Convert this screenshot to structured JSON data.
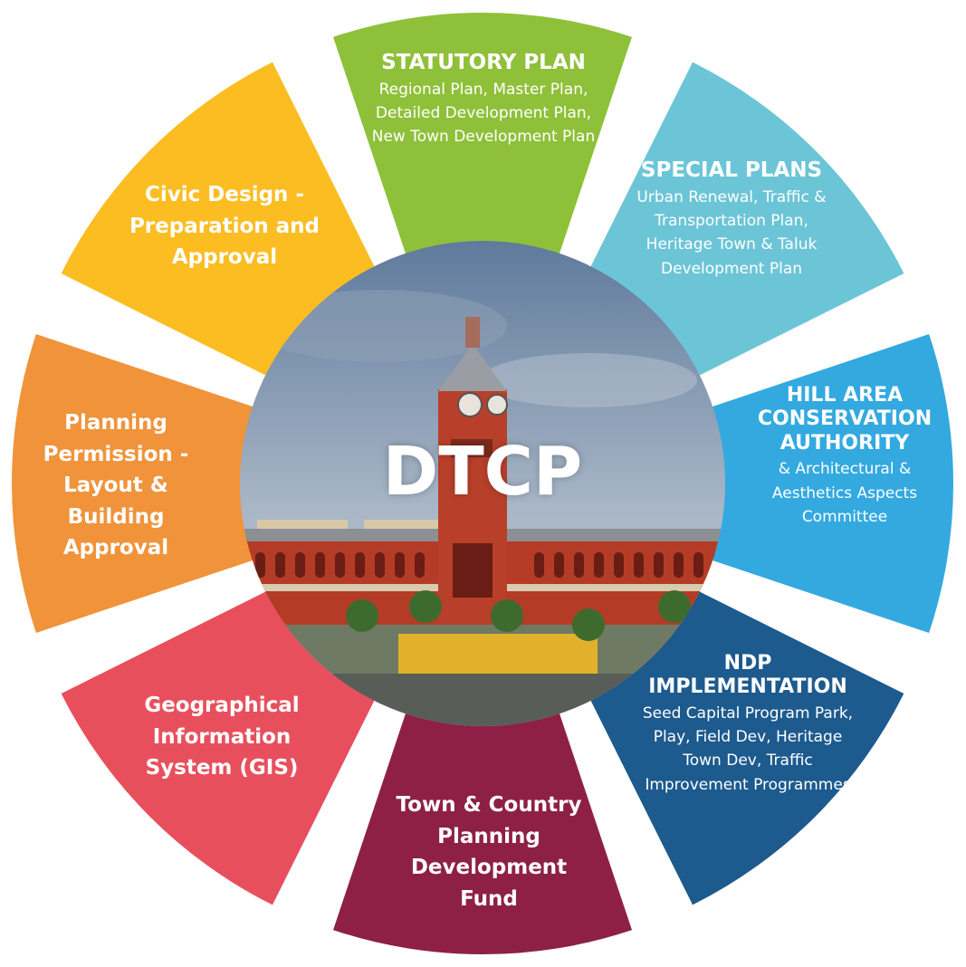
{
  "center": {
    "title": "DTCP"
  },
  "colors": {
    "statutory": "#8fc03a",
    "special": "#6cc5d6",
    "hill": "#33a9e0",
    "ndp": "#1d5a8e",
    "fund": "#8e2046",
    "gis": "#e84f5d",
    "planning": "#f0933a",
    "civic": "#fbbd22",
    "sky": "#7f94ad",
    "building": "#b43c26"
  },
  "segments": {
    "statutory": {
      "title": "STATUTORY PLAN",
      "desc": "Regional Plan, Master Plan, Detailed Development Plan, New Town Development Plan"
    },
    "special": {
      "title": "SPECIAL PLANS",
      "desc": "Urban Renewal, Traffic & Transportation Plan, Heritage  Town & Taluk Development Plan"
    },
    "hill": {
      "title": "HILL AREA CONSERVATION AUTHORITY",
      "desc": "& Architectural & Aesthetics Aspects Committee"
    },
    "ndp": {
      "title": "NDP IMPLEMENTATION",
      "desc": "Seed Capital Program Park, Play, Field Dev, Heritage Town Dev, Traffic Improvement Programmes"
    },
    "fund": {
      "title": "Town & Country Planning Development Fund"
    },
    "gis": {
      "title": "Geographical Information System (GIS)"
    },
    "planning": {
      "title": "Planning Permission -Layout & Building Approval"
    },
    "civic": {
      "title": "Civic Design - Preparation and Approval"
    }
  }
}
